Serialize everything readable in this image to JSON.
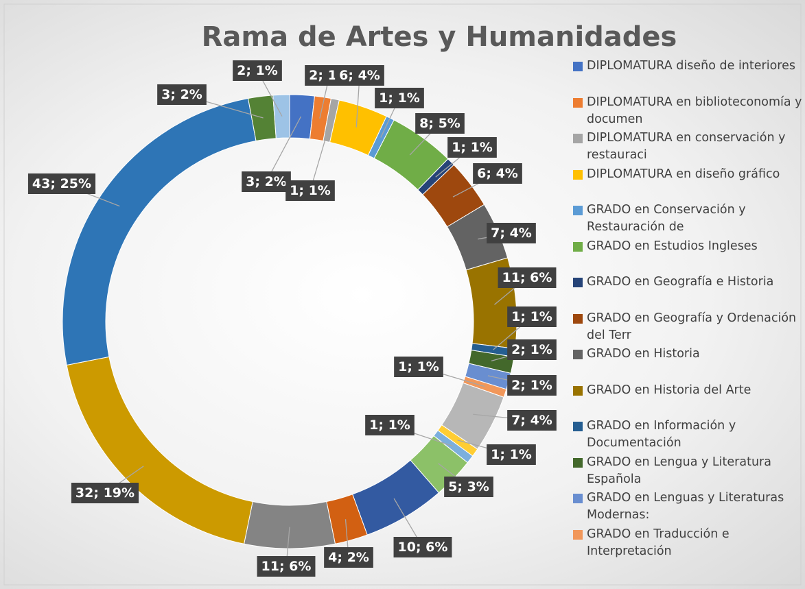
{
  "chart_data": {
    "type": "donut",
    "title": "Rama de Artes y Humanidades",
    "categories": [
      "DIPLOMATURA diseño de interiores",
      "DIPLOMATURA en biblioteconomía y documen",
      "DIPLOMATURA en conservación y restauraci",
      "DIPLOMATURA en diseño gráfico",
      "GRADO en Conservación y Restauración de",
      "GRADO en Estudios Ingleses",
      "GRADO en Geografía e Historia",
      "GRADO en Geografía y Ordenación del Terr",
      "GRADO en Historia",
      "GRADO en Historia del Arte",
      "GRADO en Información y Documentación",
      "GRADO en Lengua y Literatura Española",
      "GRADO en Lenguas y Literaturas Modernas:",
      "GRADO en Traducción e Interpretación",
      null,
      null,
      null,
      null,
      null,
      null,
      null,
      null,
      null,
      null,
      null
    ],
    "values": [
      3,
      2,
      1,
      6,
      1,
      8,
      1,
      6,
      7,
      11,
      1,
      2,
      2,
      1,
      7,
      1,
      1,
      5,
      10,
      4,
      11,
      32,
      43,
      3,
      2
    ],
    "value_labels": [
      "3; 2%",
      "2; 1%",
      "1; 1%",
      "6; 4%",
      "1; 1%",
      "8; 5%",
      "1; 1%",
      "6; 4%",
      "7; 4%",
      "11; 6%",
      "1; 1%",
      "2; 1%",
      "2; 1%",
      "1; 1%",
      "7; 4%",
      "1; 1%",
      "1; 1%",
      "5; 3%",
      "10; 6%",
      "4; 2%",
      "11; 6%",
      "32; 19%",
      "43; 25%",
      "3; 2%",
      "2; 1%"
    ],
    "colors": [
      "#4472c4",
      "#ed7d31",
      "#a5a5a5",
      "#ffc000",
      "#5b9bd5",
      "#70ad47",
      "#264478",
      "#9e480e",
      "#636363",
      "#997300",
      "#255e91",
      "#43682b",
      "#698ed0",
      "#f1975a",
      "#b7b7b7",
      "#ffcd33",
      "#7cafdd",
      "#8cc168",
      "#335aa1",
      "#d26012",
      "#848484",
      "#cc9a00",
      "#2e75b6",
      "#548235",
      "#9dc3e6"
    ],
    "legend": "right"
  }
}
